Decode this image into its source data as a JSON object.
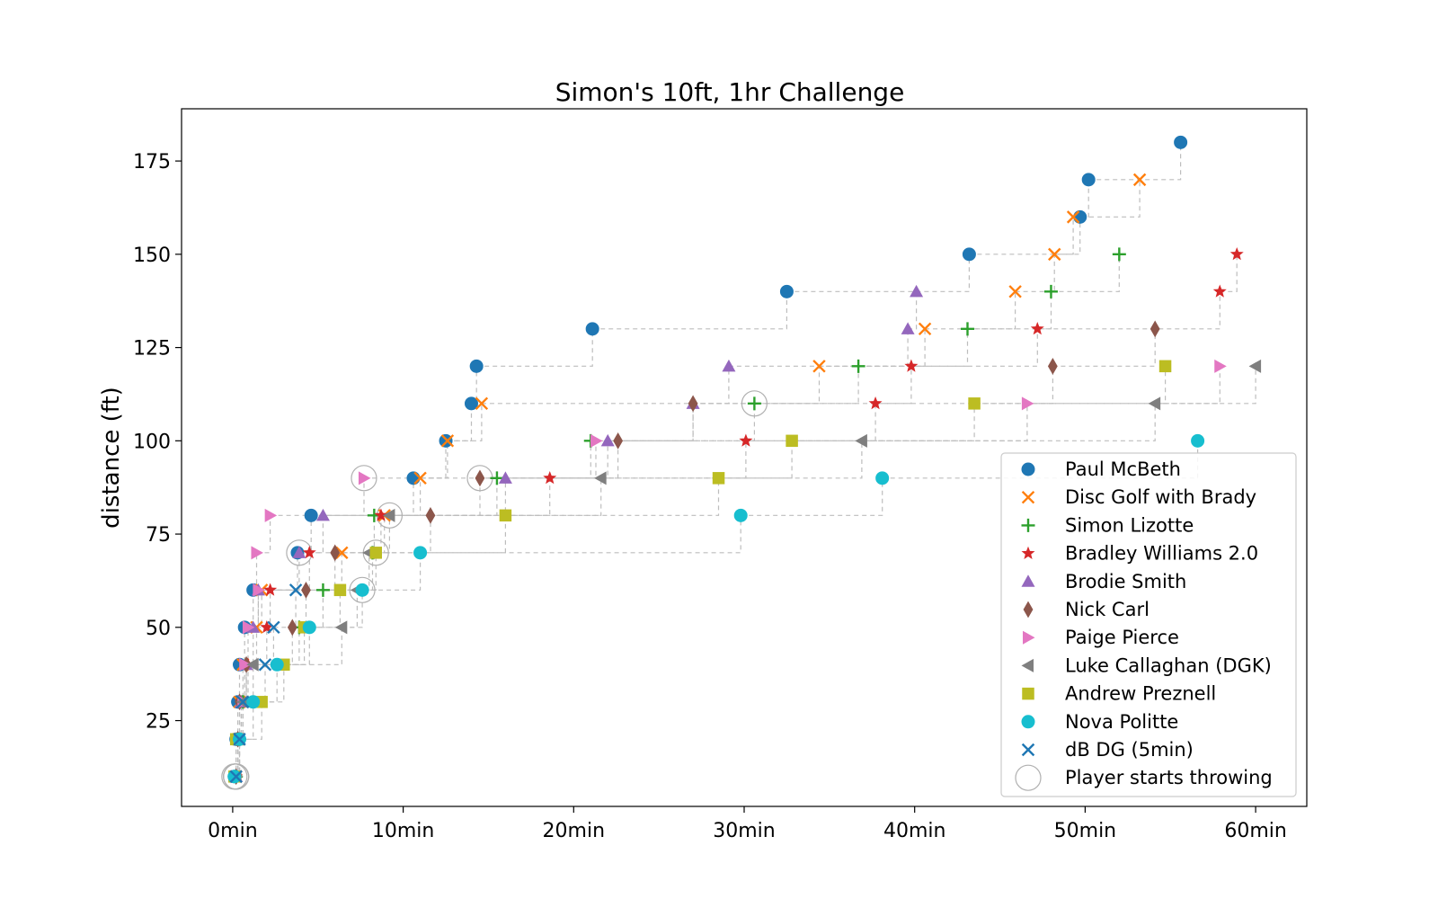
{
  "chart_data": {
    "type": "scatter",
    "title": "Simon's 10ft, 1hr Challenge",
    "xlabel": "",
    "ylabel": "distance (ft)",
    "xlim": [
      -3,
      63
    ],
    "ylim": [
      2,
      189
    ],
    "x_ticks": [
      0,
      10,
      20,
      30,
      40,
      50,
      60
    ],
    "x_tick_labels": [
      "0min",
      "10min",
      "20min",
      "30min",
      "40min",
      "50min",
      "60min"
    ],
    "y_ticks": [
      25,
      50,
      75,
      100,
      125,
      150,
      175
    ],
    "y_tick_labels": [
      "25",
      "50",
      "75",
      "100",
      "125",
      "150",
      "175"
    ],
    "grid": false,
    "legend_position": "lower-right",
    "start_marker_label": "Player starts throwing",
    "series": [
      {
        "name": "Paul McBeth",
        "marker": "circle",
        "color": "#1f77b4",
        "start": 0,
        "points": [
          [
            0.1,
            10
          ],
          [
            0.2,
            20
          ],
          [
            0.3,
            30
          ],
          [
            0.4,
            40
          ],
          [
            0.7,
            50
          ],
          [
            1.2,
            60
          ],
          [
            3.8,
            70
          ],
          [
            4.6,
            80
          ],
          [
            10.6,
            90
          ],
          [
            12.5,
            100
          ],
          [
            14.0,
            110
          ],
          [
            14.3,
            120
          ],
          [
            21.1,
            130
          ],
          [
            32.5,
            140
          ],
          [
            43.2,
            150
          ],
          [
            49.7,
            160
          ],
          [
            50.2,
            170
          ],
          [
            55.6,
            180
          ]
        ]
      },
      {
        "name": "Disc Golf with Brady",
        "marker": "x",
        "color": "#ff7f0e",
        "start": 0,
        "points": [
          [
            0.2,
            10
          ],
          [
            0.3,
            20
          ],
          [
            0.4,
            30
          ],
          [
            0.6,
            40
          ],
          [
            1.4,
            50
          ],
          [
            1.7,
            60
          ],
          [
            6.4,
            70
          ],
          [
            8.9,
            80
          ],
          [
            11.0,
            90
          ],
          [
            12.6,
            100
          ],
          [
            14.6,
            110
          ],
          [
            34.4,
            120
          ],
          [
            40.6,
            130
          ],
          [
            45.9,
            140
          ],
          [
            48.2,
            150
          ],
          [
            49.3,
            160
          ],
          [
            53.2,
            170
          ]
        ]
      },
      {
        "name": "Simon Lizotte",
        "marker": "plus",
        "color": "#2ca02c",
        "start": 30.6,
        "points": [
          [
            0.2,
            10
          ],
          [
            0.4,
            20
          ],
          [
            0.6,
            30
          ],
          [
            0.8,
            40
          ],
          [
            3.9,
            50
          ],
          [
            5.3,
            60
          ],
          [
            8.2,
            70
          ],
          [
            8.3,
            80
          ],
          [
            15.5,
            90
          ],
          [
            21.0,
            100
          ],
          [
            30.6,
            110
          ],
          [
            36.7,
            120
          ],
          [
            43.1,
            130
          ],
          [
            48.0,
            140
          ],
          [
            52.0,
            150
          ]
        ]
      },
      {
        "name": "Bradley Williams 2.0",
        "marker": "star",
        "color": "#d62728",
        "start": 0,
        "points": [
          [
            0.2,
            10
          ],
          [
            0.3,
            20
          ],
          [
            0.5,
            30
          ],
          [
            0.9,
            40
          ],
          [
            2.0,
            50
          ],
          [
            2.2,
            60
          ],
          [
            4.5,
            70
          ],
          [
            8.7,
            80
          ],
          [
            18.6,
            90
          ],
          [
            30.1,
            100
          ],
          [
            37.7,
            110
          ],
          [
            39.8,
            120
          ],
          [
            47.2,
            130
          ],
          [
            57.9,
            140
          ],
          [
            58.9,
            150
          ]
        ]
      },
      {
        "name": "Brodie Smith",
        "marker": "triangle-up",
        "color": "#9467bd",
        "start": 3.9,
        "points": [
          [
            0.2,
            10
          ],
          [
            0.3,
            20
          ],
          [
            0.5,
            30
          ],
          [
            0.8,
            40
          ],
          [
            1.2,
            50
          ],
          [
            1.5,
            60
          ],
          [
            3.9,
            70
          ],
          [
            5.3,
            80
          ],
          [
            16.0,
            90
          ],
          [
            22.0,
            100
          ],
          [
            27.0,
            110
          ],
          [
            29.1,
            120
          ],
          [
            39.6,
            130
          ],
          [
            40.1,
            140
          ]
        ]
      },
      {
        "name": "Nick Carl",
        "marker": "diamond",
        "color": "#8c564b",
        "start": 14.5,
        "points": [
          [
            0.2,
            10
          ],
          [
            0.3,
            20
          ],
          [
            0.4,
            30
          ],
          [
            0.8,
            40
          ],
          [
            3.5,
            50
          ],
          [
            4.3,
            60
          ],
          [
            6.0,
            70
          ],
          [
            11.6,
            80
          ],
          [
            14.5,
            90
          ],
          [
            22.6,
            100
          ],
          [
            27.0,
            110
          ],
          [
            48.1,
            120
          ],
          [
            54.1,
            130
          ]
        ]
      },
      {
        "name": "Paige Pierce",
        "marker": "triangle-right",
        "color": "#e377c2",
        "start": 7.7,
        "points": [
          [
            0.2,
            10
          ],
          [
            0.4,
            20
          ],
          [
            0.6,
            30
          ],
          [
            0.7,
            40
          ],
          [
            0.9,
            50
          ],
          [
            1.5,
            60
          ],
          [
            1.4,
            70
          ],
          [
            2.2,
            80
          ],
          [
            7.7,
            90
          ],
          [
            21.3,
            100
          ],
          [
            46.6,
            110
          ],
          [
            57.9,
            120
          ]
        ]
      },
      {
        "name": "Luke Callaghan (DGK)",
        "marker": "triangle-left",
        "color": "#7f7f7f",
        "start": 9.2,
        "points": [
          [
            0.2,
            10
          ],
          [
            0.4,
            20
          ],
          [
            0.6,
            30
          ],
          [
            1.2,
            40
          ],
          [
            6.4,
            50
          ],
          [
            7.3,
            60
          ],
          [
            8.0,
            70
          ],
          [
            9.2,
            80
          ],
          [
            21.6,
            90
          ],
          [
            36.9,
            100
          ],
          [
            54.1,
            110
          ],
          [
            60.0,
            120
          ]
        ]
      },
      {
        "name": "Andrew Preznell",
        "marker": "square",
        "color": "#bcbd22",
        "start": 8.4,
        "points": [
          [
            0.1,
            10
          ],
          [
            0.2,
            20
          ],
          [
            1.7,
            30
          ],
          [
            3.0,
            40
          ],
          [
            4.2,
            50
          ],
          [
            6.3,
            60
          ],
          [
            8.4,
            70
          ],
          [
            16.0,
            80
          ],
          [
            28.5,
            90
          ],
          [
            32.8,
            100
          ],
          [
            43.5,
            110
          ],
          [
            54.7,
            120
          ]
        ]
      },
      {
        "name": "Nova Politte",
        "marker": "circle",
        "color": "#17becf",
        "start": 7.6,
        "points": [
          [
            0.1,
            10
          ],
          [
            0.4,
            20
          ],
          [
            1.2,
            30
          ],
          [
            2.6,
            40
          ],
          [
            4.5,
            50
          ],
          [
            7.6,
            60
          ],
          [
            11.0,
            70
          ],
          [
            29.8,
            80
          ],
          [
            38.1,
            90
          ],
          [
            56.6,
            100
          ]
        ]
      },
      {
        "name": "dB DG (5min)",
        "marker": "x",
        "color": "#1f77b4",
        "start": 0,
        "points": [
          [
            0.2,
            10
          ],
          [
            0.4,
            20
          ],
          [
            0.6,
            30
          ],
          [
            1.9,
            40
          ],
          [
            2.4,
            50
          ],
          [
            3.7,
            60
          ]
        ]
      }
    ]
  }
}
